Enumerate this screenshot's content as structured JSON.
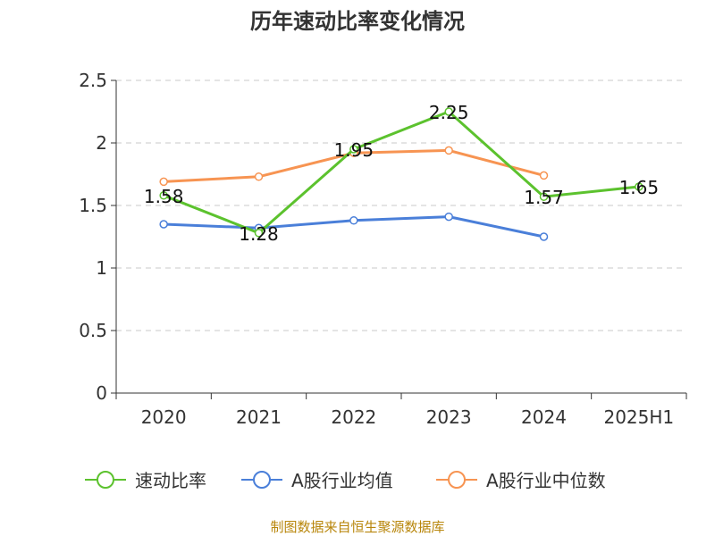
{
  "chart_data": {
    "type": "line",
    "title": "历年速动比率变化情况",
    "categories": [
      "2020",
      "2021",
      "2022",
      "2023",
      "2024",
      "2025H1"
    ],
    "y_ticks": [
      "0",
      "0.5",
      "1",
      "1.5",
      "2",
      "2.5"
    ],
    "ylim": [
      0,
      2.5
    ],
    "grid": true,
    "legend_position": "bottom",
    "series": [
      {
        "name": "速动比率",
        "color": "#5cc22e",
        "values": [
          1.58,
          1.28,
          1.95,
          2.25,
          1.57,
          1.65
        ],
        "labels": [
          "1.58",
          "1.28",
          "1.95",
          "2.25",
          "1.57",
          "1.65"
        ]
      },
      {
        "name": "A股行业均值",
        "color": "#4a7fd9",
        "values": [
          1.35,
          1.32,
          1.38,
          1.41,
          1.25,
          null
        ]
      },
      {
        "name": "A股行业中位数",
        "color": "#f79452",
        "values": [
          1.69,
          1.73,
          1.92,
          1.94,
          1.74,
          null
        ]
      }
    ],
    "source": "制图数据来自恒生聚源数据库"
  }
}
